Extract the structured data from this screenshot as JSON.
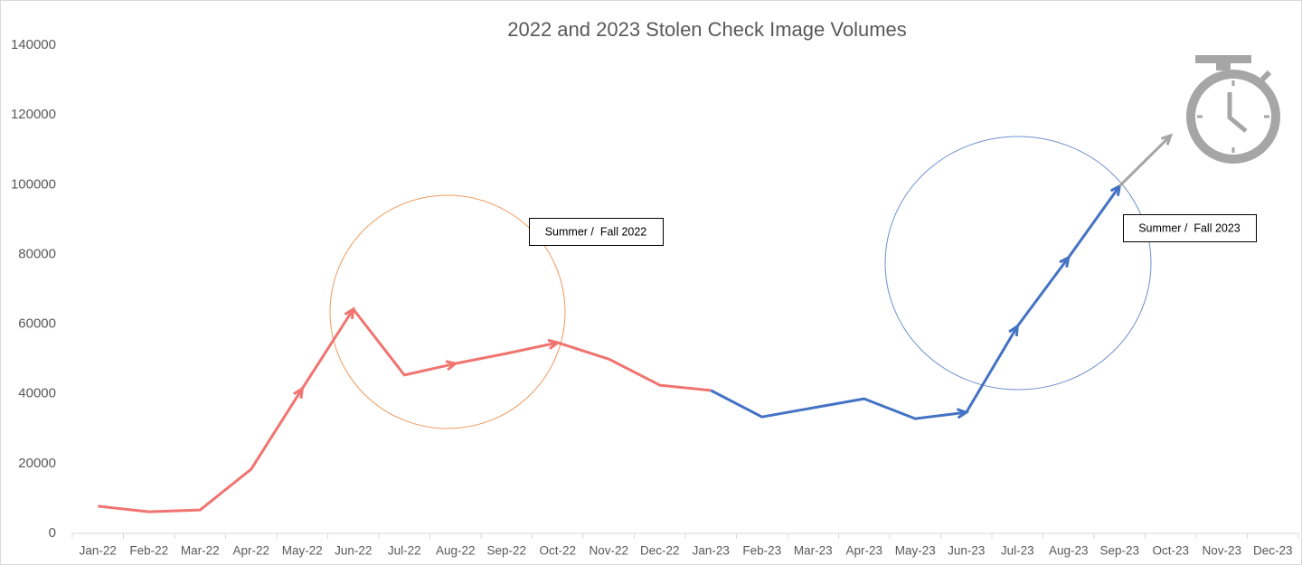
{
  "chart_data": {
    "type": "line",
    "title": "2022 and 2023 Stolen Check Image Volumes",
    "categories": [
      "Jan-22",
      "Feb-22",
      "Mar-22",
      "Apr-22",
      "May-22",
      "Jun-22",
      "Jul-22",
      "Aug-22",
      "Sep-22",
      "Oct-22",
      "Nov-22",
      "Dec-22",
      "Jan-23",
      "Feb-23",
      "Mar-23",
      "Apr-23",
      "May-23",
      "Jun-23",
      "Jul-23",
      "Aug-23",
      "Sep-23",
      "Oct-23",
      "Nov-23",
      "Dec-23"
    ],
    "series": [
      {
        "color": "#f07470",
        "values": [
          7800,
          6200,
          6700,
          18400,
          41500,
          64300,
          45400,
          48700,
          51600,
          54700,
          50000,
          42500,
          41000,
          null,
          null,
          null,
          null,
          null,
          null,
          null,
          null,
          null,
          null,
          null
        ]
      },
      {
        "color": "#4472c4",
        "values": [
          null,
          null,
          null,
          null,
          null,
          null,
          null,
          null,
          null,
          null,
          null,
          null,
          41000,
          33400,
          36000,
          38600,
          32900,
          34700,
          59400,
          79100,
          99600,
          null,
          null,
          null
        ]
      },
      {
        "color": "#a5a5a5",
        "values": [
          null,
          null,
          null,
          null,
          null,
          null,
          null,
          null,
          null,
          null,
          null,
          null,
          null,
          null,
          null,
          null,
          null,
          null,
          null,
          null,
          99600,
          114100,
          null,
          null
        ]
      }
    ],
    "ylim": [
      0,
      140000
    ],
    "yticks": [
      0,
      20000,
      40000,
      60000,
      80000,
      100000,
      120000,
      140000
    ],
    "grid": false,
    "annotations": [
      "Summer /  Fall 2022",
      "Summer /  Fall 2023"
    ]
  }
}
